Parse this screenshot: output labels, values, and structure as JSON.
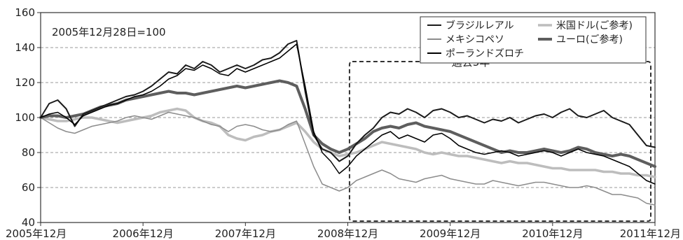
{
  "chart_data": {
    "type": "line",
    "annotation": "2005年12月28日=100",
    "highlight_label": "過去3年",
    "xlim": [
      0,
      72
    ],
    "ylim": [
      40,
      160
    ],
    "yticks": [
      40,
      60,
      80,
      100,
      120,
      140,
      160
    ],
    "xticks": [
      {
        "x": 0,
        "label": "2005年12月"
      },
      {
        "x": 12,
        "label": "2006年12月"
      },
      {
        "x": 24,
        "label": "2007年12月"
      },
      {
        "x": 36,
        "label": "2008年12月"
      },
      {
        "x": 48,
        "label": "2009年12月"
      },
      {
        "x": 60,
        "label": "2010年12月"
      },
      {
        "x": 72,
        "label": "2011年12月"
      }
    ],
    "highlight_range": {
      "x": [
        36.2,
        72
      ],
      "y": [
        40,
        132
      ]
    },
    "grid": true,
    "legend_position": "top-right",
    "x": [
      0,
      1,
      2,
      3,
      4,
      5,
      6,
      7,
      8,
      9,
      10,
      11,
      12,
      13,
      14,
      15,
      16,
      17,
      18,
      19,
      20,
      21,
      22,
      23,
      24,
      25,
      26,
      27,
      28,
      29,
      30,
      31,
      32,
      33,
      34,
      35,
      36,
      37,
      38,
      39,
      40,
      41,
      42,
      43,
      44,
      45,
      46,
      47,
      48,
      49,
      50,
      51,
      52,
      53,
      54,
      55,
      56,
      57,
      58,
      59,
      60,
      61,
      62,
      63,
      64,
      65,
      66,
      67,
      68,
      69,
      70,
      71,
      72
    ],
    "series": [
      {
        "name": "ブラジルレアル",
        "color": "#1a1a1a",
        "width": 2,
        "values": [
          100,
          108,
          110,
          105,
          95,
          102,
          104,
          106,
          108,
          110,
          112,
          113,
          115,
          118,
          122,
          126,
          125,
          130,
          128,
          132,
          130,
          126,
          128,
          130,
          128,
          130,
          133,
          134,
          137,
          142,
          144,
          115,
          90,
          82,
          80,
          75,
          78,
          85,
          90,
          94,
          100,
          103,
          102,
          105,
          103,
          100,
          104,
          105,
          103,
          100,
          101,
          99,
          97,
          99,
          98,
          100,
          97,
          99,
          101,
          102,
          100,
          103,
          105,
          101,
          100,
          102,
          104,
          100,
          98,
          96,
          90,
          84,
          83
        ]
      },
      {
        "name": "メキシコペソ",
        "color": "#8c8c8c",
        "width": 1.5,
        "values": [
          100,
          97,
          94,
          92,
          91,
          93,
          95,
          96,
          97,
          98,
          100,
          101,
          100,
          99,
          101,
          103,
          102,
          101,
          100,
          98,
          96,
          95,
          92,
          95,
          96,
          95,
          93,
          92,
          93,
          96,
          98,
          85,
          72,
          62,
          60,
          58,
          60,
          64,
          66,
          68,
          70,
          68,
          65,
          64,
          63,
          65,
          66,
          67,
          65,
          64,
          63,
          62,
          62,
          64,
          63,
          62,
          61,
          62,
          63,
          63,
          62,
          61,
          60,
          60,
          61,
          60,
          58,
          56,
          56,
          55,
          54,
          51,
          50
        ]
      },
      {
        "name": "ポーランドズロチ",
        "color": "#000000",
        "width": 1.5,
        "values": [
          100,
          102,
          103,
          100,
          96,
          101,
          103,
          105,
          107,
          108,
          110,
          112,
          113,
          115,
          118,
          122,
          124,
          128,
          127,
          130,
          128,
          125,
          124,
          128,
          126,
          128,
          130,
          132,
          134,
          138,
          142,
          118,
          92,
          80,
          75,
          68,
          72,
          78,
          82,
          86,
          90,
          92,
          88,
          90,
          88,
          86,
          90,
          91,
          88,
          84,
          82,
          80,
          79,
          80,
          81,
          80,
          78,
          79,
          80,
          81,
          80,
          78,
          80,
          82,
          80,
          79,
          78,
          76,
          74,
          72,
          68,
          64,
          62
        ]
      },
      {
        "name": "米国ドル(ご参考)",
        "color": "#bdbdbd",
        "width": 3.5,
        "values": [
          100,
          99,
          98,
          98,
          99,
          100,
          100,
          99,
          98,
          97,
          98,
          99,
          100,
          101,
          103,
          104,
          105,
          104,
          100,
          98,
          97,
          95,
          90,
          88,
          87,
          89,
          90,
          92,
          93,
          95,
          97,
          92,
          86,
          82,
          80,
          78,
          79,
          80,
          82,
          84,
          86,
          85,
          84,
          83,
          82,
          80,
          79,
          80,
          79,
          78,
          78,
          77,
          76,
          75,
          74,
          75,
          74,
          74,
          73,
          72,
          71,
          71,
          70,
          70,
          70,
          70,
          69,
          69,
          68,
          68,
          67,
          67,
          66
        ]
      },
      {
        "name": "ユーロ(ご参考)",
        "color": "#5e5e5e",
        "width": 4,
        "values": [
          100,
          101,
          101,
          100,
          101,
          102,
          104,
          106,
          107,
          108,
          110,
          111,
          112,
          113,
          114,
          115,
          114,
          114,
          113,
          114,
          115,
          116,
          117,
          118,
          117,
          118,
          119,
          120,
          121,
          120,
          118,
          105,
          90,
          85,
          82,
          80,
          82,
          85,
          88,
          92,
          94,
          95,
          94,
          96,
          97,
          95,
          94,
          93,
          92,
          90,
          88,
          86,
          84,
          82,
          80,
          81,
          80,
          80,
          81,
          82,
          81,
          80,
          81,
          83,
          82,
          80,
          79,
          78,
          79,
          78,
          76,
          74,
          72
        ]
      }
    ]
  }
}
